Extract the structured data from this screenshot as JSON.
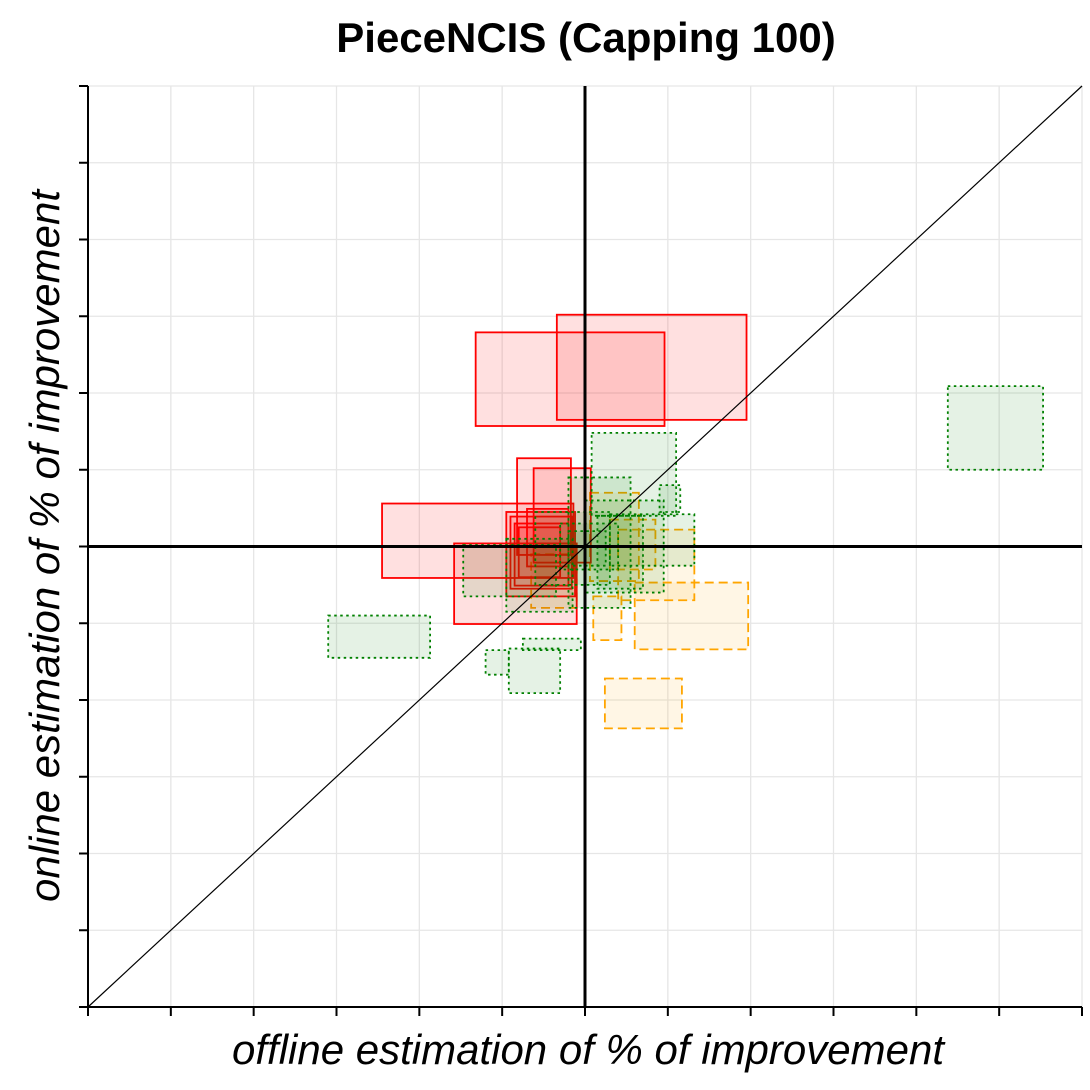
{
  "chart_data": {
    "type": "box-scatter",
    "title": "PieceNCIS (Capping 100)",
    "xlabel": "offline estimation of % of improvement",
    "ylabel": "online estimation of % of improvement",
    "xlim": [
      -6,
      6
    ],
    "ylim": [
      -6,
      6
    ],
    "tick_step": 1,
    "tick_labels": "none",
    "grid": true,
    "reference_lines": [
      "x = 0",
      "y = 0",
      "y = x"
    ],
    "colors": {
      "red": "#ff0000",
      "orange": "#ffa500",
      "green": "#008000"
    },
    "series": [
      {
        "name": "red (solid)",
        "boxes": [
          {
            "x": [
              -1.32,
              0.96
            ],
            "y": [
              1.57,
              2.79
            ]
          },
          {
            "x": [
              -0.34,
              1.95
            ],
            "y": [
              1.65,
              3.02
            ]
          },
          {
            "x": [
              -2.45,
              -0.14
            ],
            "y": [
              -0.41,
              0.56
            ]
          },
          {
            "x": [
              -1.58,
              -0.1
            ],
            "y": [
              -1.01,
              0.04
            ]
          },
          {
            "x": [
              -0.82,
              -0.17
            ],
            "y": [
              -0.11,
              1.15
            ]
          },
          {
            "x": [
              -0.62,
              0.07
            ],
            "y": [
              -0.21,
              1.02
            ]
          },
          {
            "x": [
              -0.95,
              -0.12
            ],
            "y": [
              -0.65,
              0.45
            ]
          },
          {
            "x": [
              -0.9,
              -0.16
            ],
            "y": [
              -0.55,
              0.39
            ]
          },
          {
            "x": [
              -0.85,
              -0.2
            ],
            "y": [
              -0.51,
              0.3
            ]
          },
          {
            "x": [
              -0.7,
              -0.2
            ],
            "y": [
              -0.26,
              0.49
            ]
          },
          {
            "x": [
              -0.8,
              -0.3
            ],
            "y": [
              -0.4,
              0.25
            ]
          }
        ]
      },
      {
        "name": "orange (dashed)",
        "boxes": [
          {
            "x": [
              0.6,
              1.97
            ],
            "y": [
              -1.34,
              -0.47
            ]
          },
          {
            "x": [
              0.24,
              1.17
            ],
            "y": [
              -2.37,
              -1.72
            ]
          },
          {
            "x": [
              0.4,
              1.32
            ],
            "y": [
              -0.7,
              0.22
            ]
          },
          {
            "x": [
              0.1,
              0.44
            ],
            "y": [
              -1.22,
              -0.65
            ]
          },
          {
            "x": [
              0.06,
              0.65
            ],
            "y": [
              -0.45,
              0.7
            ]
          },
          {
            "x": [
              -0.65,
              -0.1
            ],
            "y": [
              -0.8,
              -0.1
            ]
          },
          {
            "x": [
              0.3,
              0.85
            ],
            "y": [
              -0.3,
              0.35
            ]
          }
        ]
      },
      {
        "name": "green (dotted)",
        "boxes": [
          {
            "x": [
              4.38,
              5.53
            ],
            "y": [
              1.0,
              2.09
            ]
          },
          {
            "x": [
              -3.1,
              -1.87
            ],
            "y": [
              -1.45,
              -0.9
            ]
          },
          {
            "x": [
              -0.92,
              -0.3
            ],
            "y": [
              -1.91,
              -1.33
            ]
          },
          {
            "x": [
              -1.2,
              -0.92
            ],
            "y": [
              -1.67,
              -1.35
            ]
          },
          {
            "x": [
              -0.75,
              -0.05
            ],
            "y": [
              -1.35,
              -1.2
            ]
          },
          {
            "x": [
              0.08,
              1.1
            ],
            "y": [
              0.4,
              1.48
            ]
          },
          {
            "x": [
              -1.47,
              -0.35
            ],
            "y": [
              -0.65,
              0.02
            ]
          },
          {
            "x": [
              -0.95,
              -0.15
            ],
            "y": [
              -0.85,
              0.1
            ]
          },
          {
            "x": [
              -0.2,
              0.55
            ],
            "y": [
              -0.8,
              0.9
            ]
          },
          {
            "x": [
              0.0,
              0.95
            ],
            "y": [
              -0.6,
              0.6
            ]
          },
          {
            "x": [
              0.3,
              1.32
            ],
            "y": [
              -0.25,
              0.42
            ]
          },
          {
            "x": [
              -0.3,
              0.4
            ],
            "y": [
              -0.3,
              0.3
            ]
          },
          {
            "x": [
              -0.6,
              0.3
            ],
            "y": [
              -0.5,
              0.45
            ]
          },
          {
            "x": [
              0.15,
              0.7
            ],
            "y": [
              -0.55,
              0.4
            ]
          },
          {
            "x": [
              0.9,
              1.15
            ],
            "y": [
              0.45,
              0.8
            ]
          },
          {
            "x": [
              -0.2,
              0.25
            ],
            "y": [
              -0.25,
              0.2
            ]
          }
        ]
      }
    ]
  }
}
